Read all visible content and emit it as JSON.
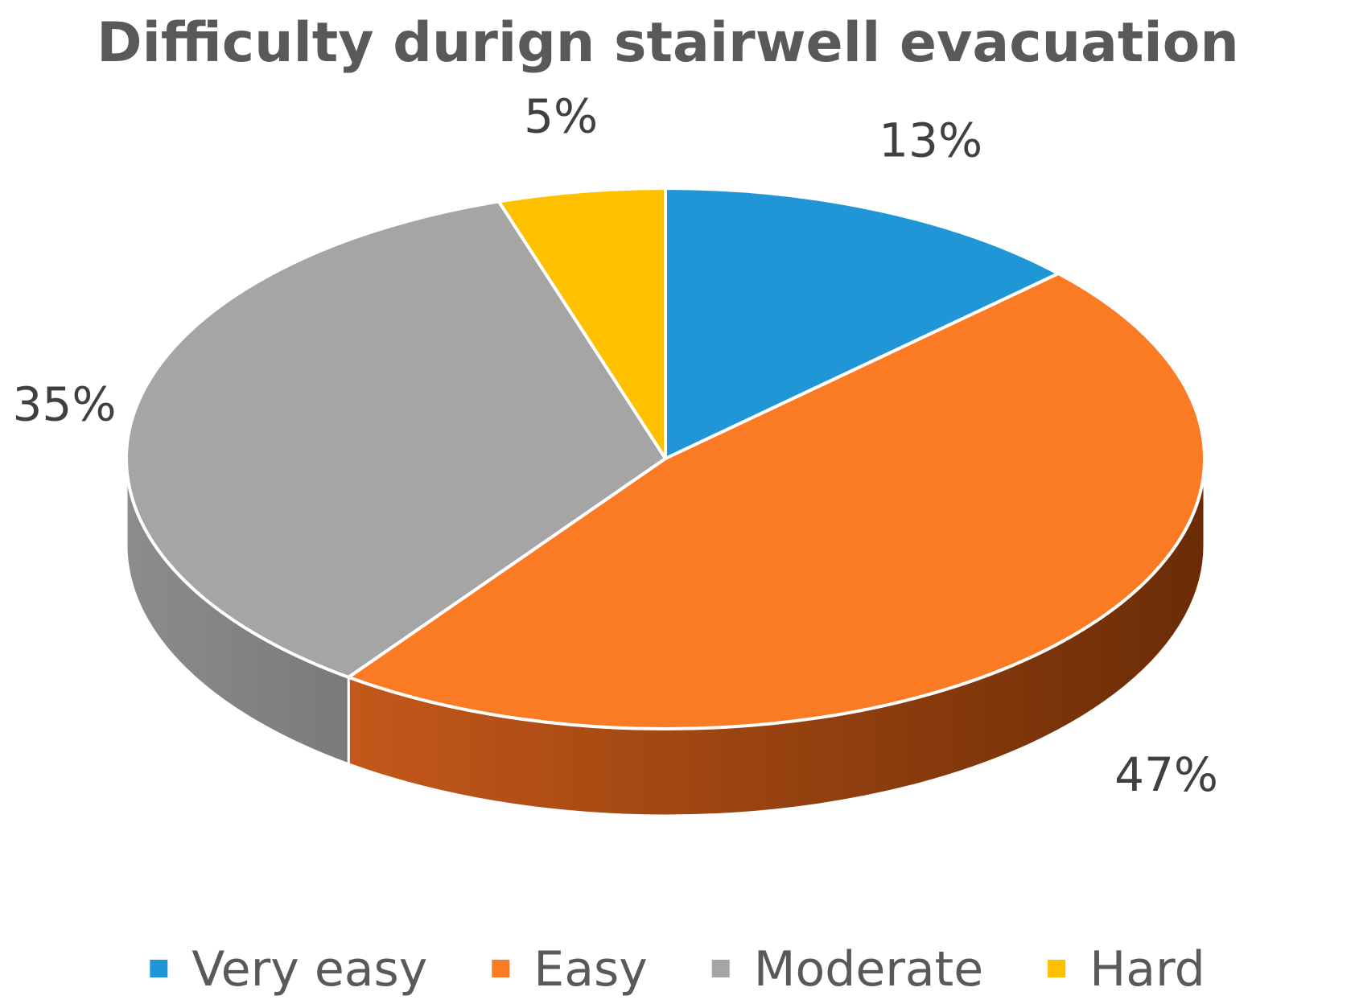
{
  "chart_data": {
    "type": "pie",
    "title": "Difficulty durign stairwell evacuation",
    "categories": [
      "Very easy",
      "Easy",
      "Moderate",
      "Hard"
    ],
    "values": [
      13,
      47,
      35,
      5
    ],
    "value_labels": [
      "13%",
      "47%",
      "35%",
      "5%"
    ],
    "colors": [
      "#2196D6",
      "#FB7A24",
      "#A5A5A5",
      "#FFC000"
    ],
    "side_colors": {
      "Easy": [
        "#C4581A",
        "#6A2C06"
      ],
      "Moderate": [
        "#8C8C8C",
        "#7A7A7A"
      ]
    },
    "legend_position": "bottom",
    "style": "3d"
  }
}
